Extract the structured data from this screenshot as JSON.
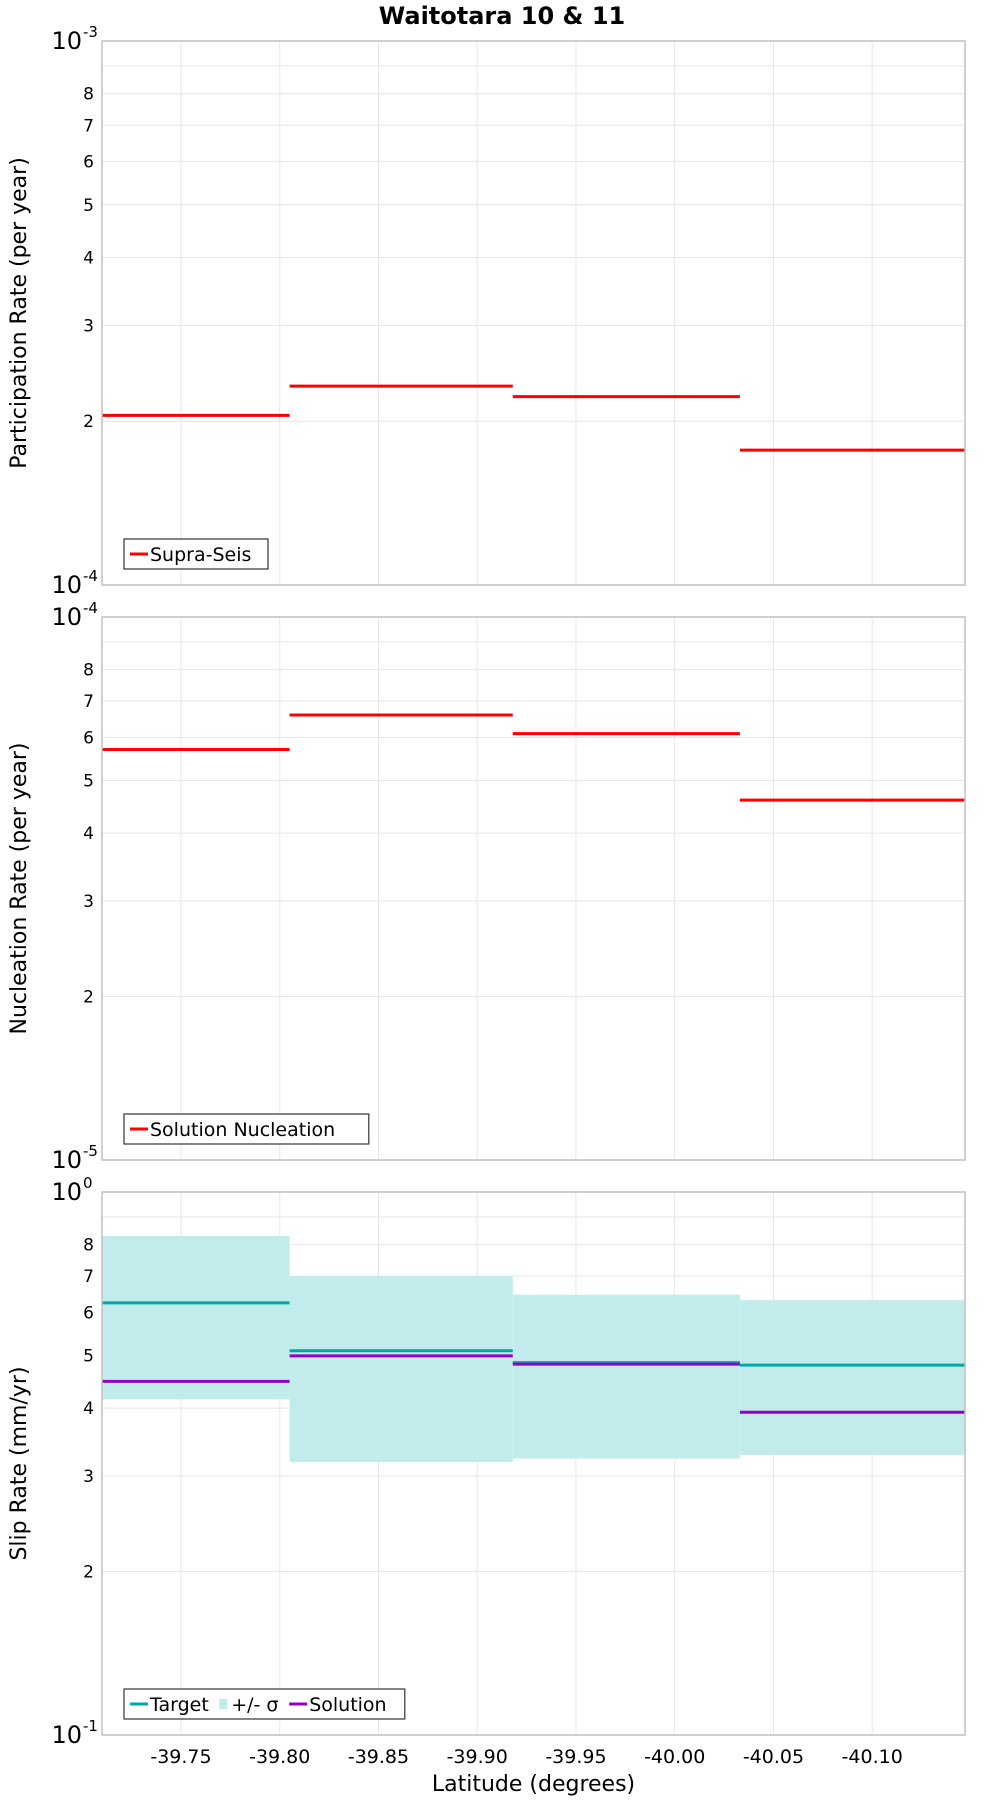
{
  "title": "Waitotara 10 & 11",
  "chart_data": [
    {
      "type": "line",
      "subtype": "step",
      "ylabel": "Participation Rate (per year)",
      "yscale": "log",
      "ylim": [
        0.0001,
        0.001
      ],
      "ytick_minor": [
        2,
        3,
        4,
        5,
        6,
        7,
        8
      ],
      "ytick_decades": [
        {
          "base": "10",
          "exp": "-4"
        },
        {
          "base": "10",
          "exp": "-3"
        }
      ],
      "legend": {
        "placement": "bottom-left"
      },
      "series": [
        {
          "name": "Supra-Seis",
          "kind": "line",
          "color": "#ff0000",
          "segments": [
            {
              "x0": -39.71,
              "x1": -39.805,
              "y": 0.000205
            },
            {
              "x0": -39.805,
              "x1": -39.918,
              "y": 0.000232
            },
            {
              "x0": -39.918,
              "x1": -40.033,
              "y": 0.000222
            },
            {
              "x0": -40.033,
              "x1": -40.147,
              "y": 0.000177
            }
          ]
        }
      ]
    },
    {
      "type": "line",
      "subtype": "step",
      "ylabel": "Nucleation Rate (per year)",
      "yscale": "log",
      "ylim": [
        1e-05,
        0.0001
      ],
      "ytick_minor": [
        2,
        3,
        4,
        5,
        6,
        7,
        8
      ],
      "ytick_decades": [
        {
          "base": "10",
          "exp": "-5"
        },
        {
          "base": "10",
          "exp": "-4"
        }
      ],
      "legend": {
        "placement": "bottom-left"
      },
      "series": [
        {
          "name": "Solution Nucleation",
          "kind": "line",
          "color": "#ff0000",
          "segments": [
            {
              "x0": -39.71,
              "x1": -39.805,
              "y": 5.7e-05
            },
            {
              "x0": -39.805,
              "x1": -39.918,
              "y": 6.6e-05
            },
            {
              "x0": -39.918,
              "x1": -40.033,
              "y": 6.1e-05
            },
            {
              "x0": -40.033,
              "x1": -40.147,
              "y": 4.6e-05
            }
          ]
        }
      ]
    },
    {
      "type": "line",
      "subtype": "step",
      "xlabel": "Latitude (degrees)",
      "ylabel": "Slip Rate (mm/yr)",
      "yscale": "log",
      "ylim": [
        0.1,
        1
      ],
      "ytick_minor": [
        2,
        3,
        4,
        5,
        6,
        7,
        8
      ],
      "ytick_decades": [
        {
          "base": "10",
          "exp": "-1"
        },
        {
          "base": "10",
          "exp": "0"
        }
      ],
      "xlim": [
        -39.71,
        -40.147
      ],
      "xticks": [
        -39.75,
        -39.8,
        -39.85,
        -39.9,
        -39.95,
        -40.0,
        -40.05,
        -40.1
      ],
      "xtick_labels": [
        "-39.75",
        "-39.80",
        "-39.85",
        "-39.90",
        "-39.95",
        "-40.00",
        "-40.05",
        "-40.10"
      ],
      "legend": {
        "placement": "bottom-left"
      },
      "series": [
        {
          "name": "Target",
          "kind": "line",
          "color": "#00a8a8",
          "segments": [
            {
              "x0": -39.71,
              "x1": -39.805,
              "y": 0.625
            },
            {
              "x0": -39.805,
              "x1": -39.918,
              "y": 0.51
            },
            {
              "x0": -39.918,
              "x1": -40.033,
              "y": 0.485
            },
            {
              "x0": -40.033,
              "x1": -40.147,
              "y": 0.48
            }
          ]
        },
        {
          "name": "+/- σ",
          "kind": "band",
          "color": "#c2ecec",
          "segments": [
            {
              "x0": -39.71,
              "x1": -39.805,
              "low": 0.415,
              "high": 0.83
            },
            {
              "x0": -39.805,
              "x1": -39.918,
              "low": 0.318,
              "high": 0.7
            },
            {
              "x0": -39.918,
              "x1": -40.033,
              "low": 0.323,
              "high": 0.647
            },
            {
              "x0": -40.033,
              "x1": -40.147,
              "low": 0.328,
              "high": 0.632
            }
          ]
        },
        {
          "name": "Solution",
          "kind": "line",
          "color": "#9400c8",
          "segments": [
            {
              "x0": -39.71,
              "x1": -39.805,
              "y": 0.448
            },
            {
              "x0": -39.805,
              "x1": -39.918,
              "y": 0.499
            },
            {
              "x0": -39.918,
              "x1": -40.033,
              "y": 0.482
            },
            {
              "x0": -40.033,
              "x1": -40.147,
              "y": 0.393
            }
          ]
        }
      ]
    }
  ]
}
